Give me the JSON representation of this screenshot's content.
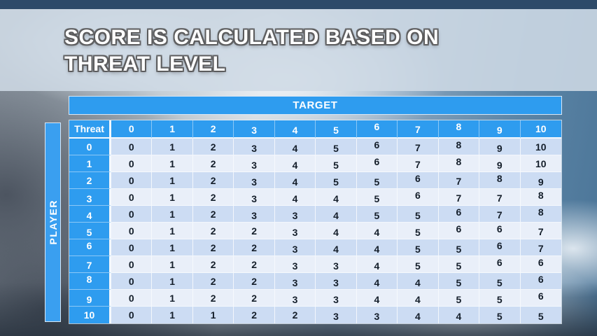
{
  "slide": {
    "title_line1": "SCORE IS CALCULATED BASED ON",
    "title_line2": "THREAT LEVEL"
  },
  "table": {
    "axis_top_label": "TARGET",
    "axis_left_label": "PLAYER",
    "corner_label": "Threat",
    "column_headers": [
      "0",
      "1",
      "2",
      "3",
      "4",
      "5",
      "6",
      "7",
      "8",
      "9",
      "10"
    ],
    "row_headers": [
      "0",
      "1",
      "2",
      "3",
      "4",
      "5",
      "6",
      "7",
      "8",
      "9",
      "10"
    ],
    "rows": [
      [
        0,
        1,
        2,
        3,
        4,
        5,
        6,
        7,
        8,
        9,
        10
      ],
      [
        0,
        1,
        2,
        3,
        4,
        5,
        6,
        7,
        8,
        9,
        10
      ],
      [
        0,
        1,
        2,
        3,
        4,
        5,
        5,
        6,
        7,
        8,
        9
      ],
      [
        0,
        1,
        2,
        3,
        4,
        4,
        5,
        6,
        7,
        7,
        8
      ],
      [
        0,
        1,
        2,
        3,
        3,
        4,
        5,
        5,
        6,
        7,
        8
      ],
      [
        0,
        1,
        2,
        2,
        3,
        4,
        4,
        5,
        6,
        6,
        7
      ],
      [
        0,
        1,
        2,
        2,
        3,
        4,
        4,
        5,
        5,
        6,
        7
      ],
      [
        0,
        1,
        2,
        2,
        3,
        3,
        4,
        5,
        5,
        6,
        6
      ],
      [
        0,
        1,
        2,
        2,
        3,
        3,
        4,
        4,
        5,
        5,
        6
      ],
      [
        0,
        1,
        2,
        2,
        3,
        3,
        4,
        4,
        5,
        5,
        6
      ],
      [
        0,
        1,
        1,
        2,
        2,
        3,
        3,
        4,
        4,
        5,
        5
      ]
    ]
  },
  "colors": {
    "accent_blue": "#2e9cef",
    "row_shade_dark": "#ccdcf3",
    "row_shade_light": "#e9eff9",
    "top_bar": "#2d4a69",
    "title_band": "#ced9e5",
    "cell_text": "#141e2a",
    "header_text": "#ffffff"
  }
}
